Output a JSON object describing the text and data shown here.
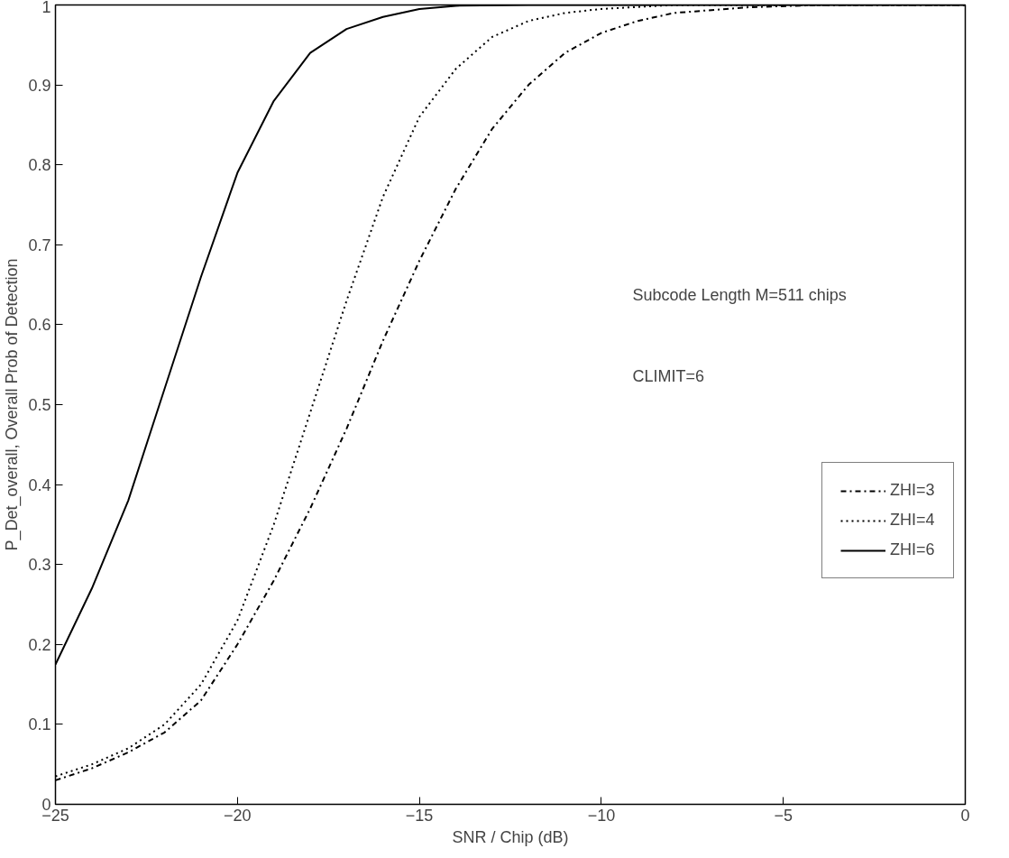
{
  "chart_data": {
    "type": "line",
    "xlabel": "SNR / Chip (dB)",
    "ylabel": "P_Det_overall, Overall Prob of Detection",
    "annotations": [
      "Subcode Length M=511 chips",
      "CLIMIT=6"
    ],
    "xlim": [
      -25,
      0
    ],
    "xticks": [
      -25,
      -20,
      -15,
      -10,
      -5,
      0
    ],
    "ylim": [
      0,
      1
    ],
    "yticks": [
      0,
      0.1,
      0.2,
      0.3,
      0.4,
      0.5,
      0.6,
      0.7,
      0.8,
      0.9,
      1
    ],
    "grid": false,
    "legend": "bottom right",
    "marker": "none",
    "series": [
      {
        "name": "ZHI=3",
        "color": "#000000",
        "line_style": "dashdot",
        "x": [
          -25,
          -24,
          -23,
          -22,
          -21,
          -20,
          -19,
          -18,
          -17,
          -16,
          -15,
          -14,
          -13,
          -12,
          -11,
          -10,
          -9,
          -8,
          -6,
          -4,
          0
        ],
        "values": [
          0.03,
          0.045,
          0.065,
          0.09,
          0.13,
          0.2,
          0.28,
          0.37,
          0.47,
          0.58,
          0.68,
          0.77,
          0.845,
          0.9,
          0.94,
          0.965,
          0.98,
          0.99,
          0.997,
          1,
          1
        ]
      },
      {
        "name": "ZHI=4",
        "color": "#000000",
        "line_style": "dotted",
        "x": [
          -25,
          -24,
          -23,
          -22,
          -21,
          -20,
          -19,
          -18,
          -17,
          -16,
          -15,
          -14,
          -13,
          -12,
          -11,
          -10,
          -8,
          0
        ],
        "values": [
          0.035,
          0.05,
          0.07,
          0.1,
          0.15,
          0.23,
          0.35,
          0.49,
          0.63,
          0.76,
          0.86,
          0.92,
          0.96,
          0.98,
          0.99,
          0.995,
          1,
          1
        ]
      },
      {
        "name": "ZHI=6",
        "color": "#000000",
        "line_style": "solid",
        "x": [
          -25,
          -24,
          -23,
          -22,
          -21,
          -20,
          -19,
          -18,
          -17,
          -16,
          -15,
          -14,
          -12,
          0
        ],
        "values": [
          0.175,
          0.27,
          0.38,
          0.52,
          0.66,
          0.79,
          0.88,
          0.94,
          0.97,
          0.985,
          0.995,
          0.999,
          1,
          1
        ]
      }
    ]
  }
}
